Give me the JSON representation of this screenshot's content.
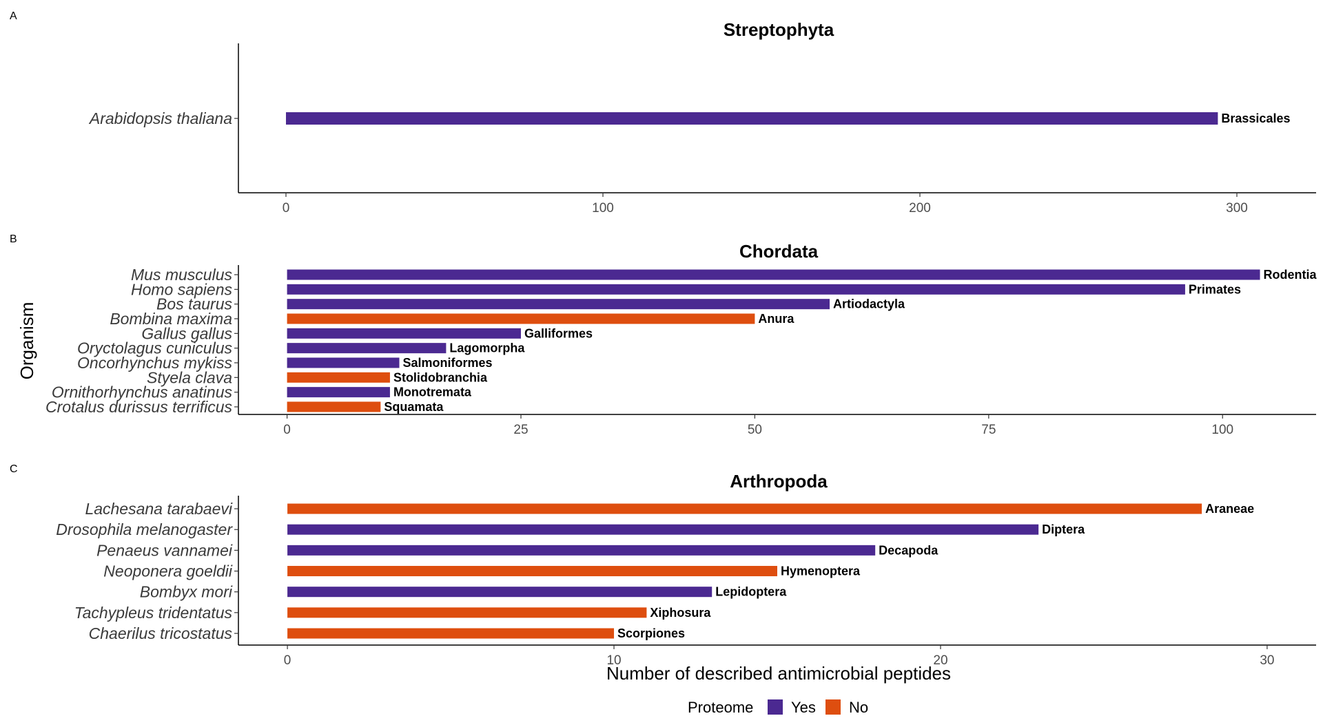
{
  "colors": {
    "yes": "#4b2991",
    "no": "#de4e0f"
  },
  "axes": {
    "ylabel": "Organism",
    "xlabel": "Number of described antimicrobial peptides"
  },
  "legend": {
    "title": "Proteome",
    "items": [
      {
        "label": "Yes",
        "color": "#4b2991"
      },
      {
        "label": "No",
        "color": "#de4e0f"
      }
    ]
  },
  "chart_data": [
    {
      "type": "bar",
      "orientation": "horizontal",
      "panel": "A",
      "title": "Streptophyta",
      "xlim": [
        -15,
        325
      ],
      "xticks": [
        0,
        100,
        200,
        300
      ],
      "tick_labels": [
        "0",
        "100",
        "200",
        "300"
      ],
      "bars": [
        {
          "organism": "Arabidopsis thaliana",
          "value": 294,
          "order": "Brassicales",
          "proteome": "Yes"
        }
      ]
    },
    {
      "type": "bar",
      "orientation": "horizontal",
      "panel": "B",
      "title": "Chordata",
      "xlim": [
        -5.2,
        110
      ],
      "xticks": [
        0,
        25,
        50,
        75,
        100
      ],
      "tick_labels": [
        "0",
        "25",
        "50",
        "75",
        "100"
      ],
      "bars": [
        {
          "organism": "Mus musculus",
          "value": 104,
          "order": "Rodentia",
          "proteome": "Yes"
        },
        {
          "organism": "Homo sapiens",
          "value": 96,
          "order": "Primates",
          "proteome": "Yes"
        },
        {
          "organism": "Bos taurus",
          "value": 58,
          "order": "Artiodactyla",
          "proteome": "Yes"
        },
        {
          "organism": "Bombina maxima",
          "value": 50,
          "order": "Anura",
          "proteome": "No"
        },
        {
          "organism": "Gallus gallus",
          "value": 25,
          "order": "Galliformes",
          "proteome": "Yes"
        },
        {
          "organism": "Oryctolagus cuniculus",
          "value": 17,
          "order": "Lagomorpha",
          "proteome": "Yes"
        },
        {
          "organism": "Oncorhynchus mykiss",
          "value": 12,
          "order": "Salmoniformes",
          "proteome": "Yes"
        },
        {
          "organism": "Styela clava",
          "value": 11,
          "order": "Stolidobranchia",
          "proteome": "No"
        },
        {
          "organism": "Ornithorhynchus anatinus",
          "value": 11,
          "order": "Monotremata",
          "proteome": "Yes"
        },
        {
          "organism": "Crotalus durissus terrificus",
          "value": 10,
          "order": "Squamata",
          "proteome": "No"
        }
      ]
    },
    {
      "type": "bar",
      "orientation": "horizontal",
      "panel": "C",
      "title": "Arthropoda",
      "xlim": [
        -1.5,
        31.5
      ],
      "xticks": [
        0,
        10,
        20,
        30
      ],
      "tick_labels": [
        "0",
        "10",
        "20",
        "30"
      ],
      "bars": [
        {
          "organism": "Lachesana tarabaevi",
          "value": 28,
          "order": "Araneae",
          "proteome": "No"
        },
        {
          "organism": "Drosophila melanogaster",
          "value": 23,
          "order": "Diptera",
          "proteome": "Yes"
        },
        {
          "organism": "Penaeus vannamei",
          "value": 18,
          "order": "Decapoda",
          "proteome": "Yes"
        },
        {
          "organism": "Neoponera goeldii",
          "value": 15,
          "order": "Hymenoptera",
          "proteome": "No"
        },
        {
          "organism": "Bombyx mori",
          "value": 13,
          "order": "Lepidoptera",
          "proteome": "Yes"
        },
        {
          "organism": "Tachypleus tridentatus",
          "value": 11,
          "order": "Xiphosura",
          "proteome": "No"
        },
        {
          "organism": "Chaerilus tricostatus",
          "value": 10,
          "order": "Scorpiones",
          "proteome": "No"
        }
      ]
    }
  ]
}
